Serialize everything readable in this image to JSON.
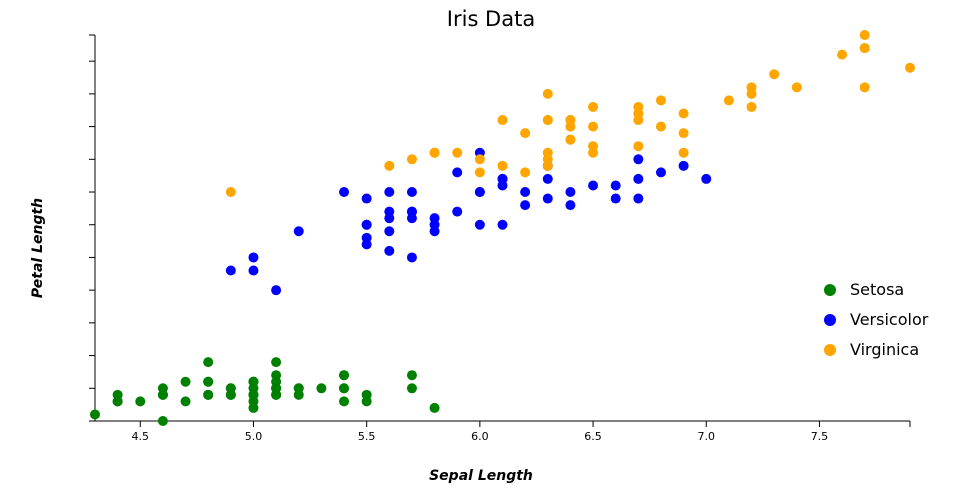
{
  "chart_data": {
    "type": "scatter",
    "title": "Iris Data",
    "xlabel": "Sepal Length",
    "ylabel": "Petal Length",
    "xlim": [
      4.3,
      7.9
    ],
    "ylim": [
      1.0,
      6.9
    ],
    "x_ticks": [
      "4.5",
      "5.0",
      "5.5",
      "6.0",
      "6.5",
      "7.0",
      "7.5"
    ],
    "x_tick_values": [
      4.5,
      5.0,
      5.5,
      6.0,
      6.5,
      7.0,
      7.5
    ],
    "y_tick_values": [
      1.0,
      1.5,
      2.0,
      2.5,
      3.0,
      3.5,
      4.0,
      4.5,
      5.0,
      5.5,
      6.0,
      6.5
    ],
    "y_tick_labels_visible": false,
    "grid": false,
    "legend_position": "right",
    "series": [
      {
        "name": "Setosa",
        "color": "#008000",
        "points": [
          [
            5.1,
            1.4
          ],
          [
            4.9,
            1.4
          ],
          [
            4.7,
            1.3
          ],
          [
            4.6,
            1.5
          ],
          [
            5.0,
            1.4
          ],
          [
            5.4,
            1.7
          ],
          [
            4.6,
            1.4
          ],
          [
            5.0,
            1.5
          ],
          [
            4.4,
            1.4
          ],
          [
            4.9,
            1.5
          ],
          [
            5.4,
            1.5
          ],
          [
            4.8,
            1.6
          ],
          [
            4.8,
            1.4
          ],
          [
            4.3,
            1.1
          ],
          [
            5.8,
            1.2
          ],
          [
            5.7,
            1.5
          ],
          [
            5.4,
            1.3
          ],
          [
            5.1,
            1.4
          ],
          [
            5.7,
            1.7
          ],
          [
            5.1,
            1.5
          ],
          [
            5.4,
            1.7
          ],
          [
            5.1,
            1.5
          ],
          [
            4.6,
            1.0
          ],
          [
            5.1,
            1.7
          ],
          [
            4.8,
            1.9
          ],
          [
            5.0,
            1.6
          ],
          [
            5.0,
            1.6
          ],
          [
            5.2,
            1.5
          ],
          [
            5.2,
            1.4
          ],
          [
            4.7,
            1.6
          ],
          [
            4.8,
            1.6
          ],
          [
            5.4,
            1.5
          ],
          [
            5.2,
            1.5
          ],
          [
            5.5,
            1.4
          ],
          [
            4.9,
            1.5
          ],
          [
            5.0,
            1.2
          ],
          [
            5.5,
            1.3
          ],
          [
            4.9,
            1.4
          ],
          [
            4.4,
            1.3
          ],
          [
            5.1,
            1.5
          ],
          [
            5.0,
            1.3
          ],
          [
            4.5,
            1.3
          ],
          [
            4.4,
            1.3
          ],
          [
            5.0,
            1.6
          ],
          [
            5.1,
            1.9
          ],
          [
            4.8,
            1.4
          ],
          [
            5.1,
            1.6
          ],
          [
            4.6,
            1.4
          ],
          [
            5.3,
            1.5
          ],
          [
            5.0,
            1.4
          ]
        ]
      },
      {
        "name": "Versicolor",
        "color": "#0000ff",
        "points": [
          [
            7.0,
            4.7
          ],
          [
            6.4,
            4.5
          ],
          [
            6.9,
            4.9
          ],
          [
            5.5,
            4.0
          ],
          [
            6.5,
            4.6
          ],
          [
            5.7,
            4.5
          ],
          [
            6.3,
            4.7
          ],
          [
            4.9,
            3.3
          ],
          [
            6.6,
            4.6
          ],
          [
            5.2,
            3.9
          ],
          [
            5.0,
            3.5
          ],
          [
            5.9,
            4.2
          ],
          [
            6.0,
            4.0
          ],
          [
            6.1,
            4.7
          ],
          [
            5.6,
            3.6
          ],
          [
            6.7,
            4.4
          ],
          [
            5.6,
            4.5
          ],
          [
            5.8,
            4.1
          ],
          [
            6.2,
            4.5
          ],
          [
            5.6,
            3.9
          ],
          [
            5.9,
            4.8
          ],
          [
            6.1,
            4.0
          ],
          [
            6.3,
            4.9
          ],
          [
            6.1,
            4.7
          ],
          [
            6.4,
            4.3
          ],
          [
            6.6,
            4.4
          ],
          [
            6.8,
            4.8
          ],
          [
            6.7,
            5.0
          ],
          [
            6.0,
            4.5
          ],
          [
            5.7,
            3.5
          ],
          [
            5.5,
            3.8
          ],
          [
            5.5,
            3.7
          ],
          [
            5.8,
            3.9
          ],
          [
            6.0,
            5.1
          ],
          [
            5.4,
            4.5
          ],
          [
            6.0,
            4.5
          ],
          [
            6.7,
            4.7
          ],
          [
            6.3,
            4.4
          ],
          [
            5.6,
            4.1
          ],
          [
            5.5,
            4.0
          ],
          [
            5.5,
            4.4
          ],
          [
            6.1,
            4.6
          ],
          [
            5.8,
            4.0
          ],
          [
            5.0,
            3.3
          ],
          [
            5.6,
            4.2
          ],
          [
            5.7,
            4.2
          ],
          [
            5.7,
            4.2
          ],
          [
            6.2,
            4.3
          ],
          [
            5.1,
            3.0
          ],
          [
            5.7,
            4.1
          ]
        ]
      },
      {
        "name": "Virginica",
        "color": "#ffa500",
        "points": [
          [
            6.3,
            6.0
          ],
          [
            5.8,
            5.1
          ],
          [
            7.1,
            5.9
          ],
          [
            6.3,
            5.6
          ],
          [
            6.5,
            5.8
          ],
          [
            7.6,
            6.6
          ],
          [
            4.9,
            4.5
          ],
          [
            7.3,
            6.3
          ],
          [
            6.7,
            5.8
          ],
          [
            7.2,
            6.1
          ],
          [
            6.5,
            5.1
          ],
          [
            6.4,
            5.3
          ],
          [
            6.8,
            5.5
          ],
          [
            5.7,
            5.0
          ],
          [
            5.8,
            5.1
          ],
          [
            6.4,
            5.3
          ],
          [
            6.5,
            5.5
          ],
          [
            7.7,
            6.7
          ],
          [
            7.7,
            6.9
          ],
          [
            6.0,
            5.0
          ],
          [
            6.9,
            5.7
          ],
          [
            5.6,
            4.9
          ],
          [
            7.7,
            6.7
          ],
          [
            6.3,
            4.9
          ],
          [
            6.7,
            5.7
          ],
          [
            7.2,
            6.0
          ],
          [
            6.2,
            4.8
          ],
          [
            6.1,
            4.9
          ],
          [
            6.4,
            5.6
          ],
          [
            7.2,
            5.8
          ],
          [
            7.4,
            6.1
          ],
          [
            7.9,
            6.4
          ],
          [
            6.4,
            5.6
          ],
          [
            6.3,
            5.1
          ],
          [
            6.1,
            5.6
          ],
          [
            7.7,
            6.1
          ],
          [
            6.3,
            5.6
          ],
          [
            6.4,
            5.5
          ],
          [
            6.0,
            4.8
          ],
          [
            6.9,
            5.4
          ],
          [
            6.7,
            5.6
          ],
          [
            6.9,
            5.1
          ],
          [
            5.8,
            5.1
          ],
          [
            6.8,
            5.9
          ],
          [
            6.7,
            5.7
          ],
          [
            6.7,
            5.2
          ],
          [
            6.3,
            5.0
          ],
          [
            6.5,
            5.2
          ],
          [
            6.2,
            5.4
          ],
          [
            5.9,
            5.1
          ]
        ]
      }
    ]
  }
}
